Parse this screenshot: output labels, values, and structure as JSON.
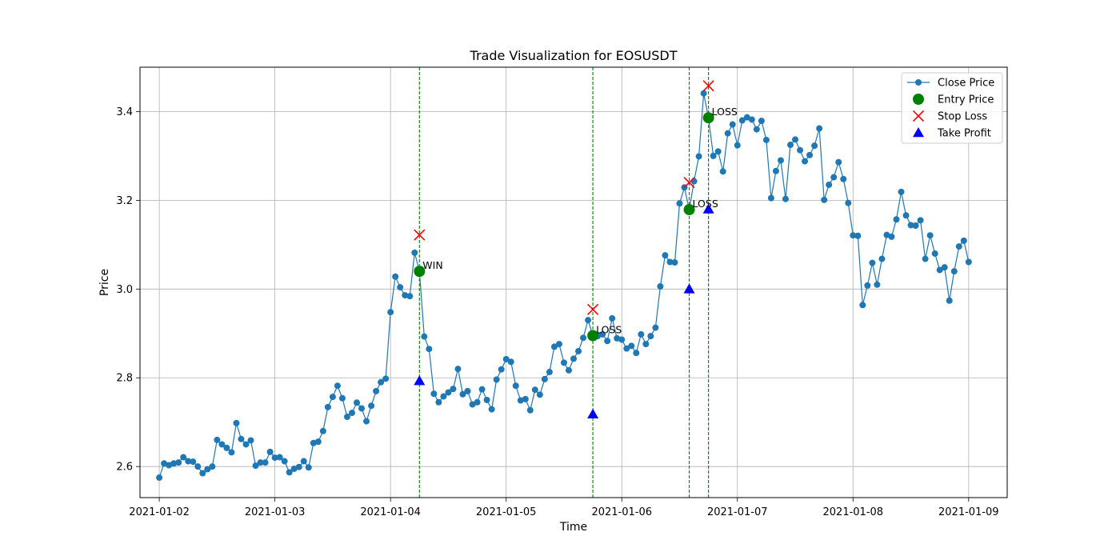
{
  "chart_data": {
    "type": "line",
    "title": "Trade Visualization for EOSUSDT",
    "xlabel": "Time",
    "ylabel": "Price",
    "ylim": [
      2.53,
      3.5
    ],
    "xlim": [
      "2021-01-01 20:00",
      "2021-01-09 08:00"
    ],
    "grid": true,
    "legend_position": "top-right",
    "x_ticks": [
      "2021-01-02",
      "2021-01-03",
      "2021-01-04",
      "2021-01-05",
      "2021-01-06",
      "2021-01-07",
      "2021-01-08",
      "2021-01-09"
    ],
    "y_ticks": [
      2.6,
      2.8,
      3.0,
      3.2,
      3.4
    ],
    "colors": {
      "close": "#1f77b4",
      "entry": "#008000",
      "stop_loss": "#ff0000",
      "take_profit": "#0000ff",
      "vline": "#008000"
    },
    "legend": [
      {
        "label": "Close Price",
        "marker": "line-circle",
        "color": "#1f77b4"
      },
      {
        "label": "Entry Price",
        "marker": "circle",
        "color": "#008000"
      },
      {
        "label": "Stop Loss",
        "marker": "x",
        "color": "#ff0000"
      },
      {
        "label": "Take Profit",
        "marker": "triangle",
        "color": "#0000ff"
      }
    ],
    "series": [
      {
        "name": "Close Price",
        "x": [
          "2021-01-02 00:00",
          "2021-01-02 01:00",
          "2021-01-02 02:00",
          "2021-01-02 03:00",
          "2021-01-02 04:00",
          "2021-01-02 05:00",
          "2021-01-02 06:00",
          "2021-01-02 07:00",
          "2021-01-02 08:00",
          "2021-01-02 09:00",
          "2021-01-02 10:00",
          "2021-01-02 11:00",
          "2021-01-02 12:00",
          "2021-01-02 13:00",
          "2021-01-02 14:00",
          "2021-01-02 15:00",
          "2021-01-02 16:00",
          "2021-01-02 17:00",
          "2021-01-02 18:00",
          "2021-01-02 19:00",
          "2021-01-02 20:00",
          "2021-01-02 21:00",
          "2021-01-02 22:00",
          "2021-01-02 23:00",
          "2021-01-03 00:00",
          "2021-01-03 01:00",
          "2021-01-03 02:00",
          "2021-01-03 03:00",
          "2021-01-03 04:00",
          "2021-01-03 05:00",
          "2021-01-03 06:00",
          "2021-01-03 07:00",
          "2021-01-03 08:00",
          "2021-01-03 09:00",
          "2021-01-03 10:00",
          "2021-01-03 11:00",
          "2021-01-03 12:00",
          "2021-01-03 13:00",
          "2021-01-03 14:00",
          "2021-01-03 15:00",
          "2021-01-03 16:00",
          "2021-01-03 17:00",
          "2021-01-03 18:00",
          "2021-01-03 19:00",
          "2021-01-03 20:00",
          "2021-01-03 21:00",
          "2021-01-03 22:00",
          "2021-01-03 23:00",
          "2021-01-04 00:00",
          "2021-01-04 01:00",
          "2021-01-04 02:00",
          "2021-01-04 03:00",
          "2021-01-04 04:00",
          "2021-01-04 05:00",
          "2021-01-04 06:00",
          "2021-01-04 07:00",
          "2021-01-04 08:00",
          "2021-01-04 09:00",
          "2021-01-04 10:00",
          "2021-01-04 11:00",
          "2021-01-04 12:00",
          "2021-01-04 13:00",
          "2021-01-04 14:00",
          "2021-01-04 15:00",
          "2021-01-04 16:00",
          "2021-01-04 17:00",
          "2021-01-04 18:00",
          "2021-01-04 19:00",
          "2021-01-04 20:00",
          "2021-01-04 21:00",
          "2021-01-04 22:00",
          "2021-01-04 23:00",
          "2021-01-05 00:00",
          "2021-01-05 01:00",
          "2021-01-05 02:00",
          "2021-01-05 03:00",
          "2021-01-05 04:00",
          "2021-01-05 05:00",
          "2021-01-05 06:00",
          "2021-01-05 07:00",
          "2021-01-05 08:00",
          "2021-01-05 09:00",
          "2021-01-05 10:00",
          "2021-01-05 11:00",
          "2021-01-05 12:00",
          "2021-01-05 13:00",
          "2021-01-05 14:00",
          "2021-01-05 15:00",
          "2021-01-05 16:00",
          "2021-01-05 17:00",
          "2021-01-05 18:00",
          "2021-01-05 19:00",
          "2021-01-05 20:00",
          "2021-01-05 21:00",
          "2021-01-05 22:00",
          "2021-01-05 23:00",
          "2021-01-06 00:00",
          "2021-01-06 01:00",
          "2021-01-06 02:00",
          "2021-01-06 03:00",
          "2021-01-06 04:00",
          "2021-01-06 05:00",
          "2021-01-06 06:00",
          "2021-01-06 07:00",
          "2021-01-06 08:00",
          "2021-01-06 09:00",
          "2021-01-06 10:00",
          "2021-01-06 11:00",
          "2021-01-06 12:00",
          "2021-01-06 13:00",
          "2021-01-06 14:00",
          "2021-01-06 15:00",
          "2021-01-06 16:00",
          "2021-01-06 17:00",
          "2021-01-06 18:00",
          "2021-01-06 19:00",
          "2021-01-06 20:00",
          "2021-01-06 21:00",
          "2021-01-06 22:00",
          "2021-01-06 23:00",
          "2021-01-07 00:00",
          "2021-01-07 01:00",
          "2021-01-07 02:00",
          "2021-01-07 03:00",
          "2021-01-07 04:00",
          "2021-01-07 05:00",
          "2021-01-07 06:00",
          "2021-01-07 07:00",
          "2021-01-07 08:00",
          "2021-01-07 09:00",
          "2021-01-07 10:00",
          "2021-01-07 11:00",
          "2021-01-07 12:00",
          "2021-01-07 13:00",
          "2021-01-07 14:00",
          "2021-01-07 15:00",
          "2021-01-07 16:00",
          "2021-01-07 17:00",
          "2021-01-07 18:00",
          "2021-01-07 19:00",
          "2021-01-07 20:00",
          "2021-01-07 21:00",
          "2021-01-07 22:00",
          "2021-01-07 23:00",
          "2021-01-08 00:00",
          "2021-01-08 01:00",
          "2021-01-08 02:00",
          "2021-01-08 03:00",
          "2021-01-08 04:00",
          "2021-01-08 05:00",
          "2021-01-08 06:00",
          "2021-01-08 07:00",
          "2021-01-08 08:00",
          "2021-01-08 09:00",
          "2021-01-08 10:00",
          "2021-01-08 11:00",
          "2021-01-08 12:00",
          "2021-01-08 13:00",
          "2021-01-08 14:00",
          "2021-01-08 15:00",
          "2021-01-08 16:00",
          "2021-01-08 17:00",
          "2021-01-08 18:00",
          "2021-01-08 19:00",
          "2021-01-08 20:00",
          "2021-01-08 21:00",
          "2021-01-08 22:00",
          "2021-01-08 23:00",
          "2021-01-09 00:00"
        ],
        "values": [
          2.575,
          2.607,
          2.603,
          2.607,
          2.609,
          2.621,
          2.612,
          2.611,
          2.6,
          2.585,
          2.594,
          2.6,
          2.66,
          2.65,
          2.642,
          2.632,
          2.698,
          2.662,
          2.65,
          2.659,
          2.602,
          2.609,
          2.609,
          2.633,
          2.62,
          2.621,
          2.612,
          2.587,
          2.595,
          2.599,
          2.612,
          2.598,
          2.653,
          2.656,
          2.68,
          2.734,
          2.757,
          2.782,
          2.754,
          2.712,
          2.721,
          2.744,
          2.731,
          2.702,
          2.737,
          2.77,
          2.79,
          2.798,
          2.948,
          3.028,
          3.004,
          2.986,
          2.984,
          3.082,
          3.04,
          2.893,
          2.865,
          2.764,
          2.745,
          2.758,
          2.767,
          2.775,
          2.82,
          2.763,
          2.77,
          2.74,
          2.745,
          2.774,
          2.75,
          2.729,
          2.796,
          2.819,
          2.842,
          2.836,
          2.782,
          2.749,
          2.752,
          2.727,
          2.773,
          2.762,
          2.797,
          2.813,
          2.87,
          2.876,
          2.834,
          2.817,
          2.843,
          2.86,
          2.89,
          2.93,
          2.895,
          2.894,
          2.898,
          2.883,
          2.934,
          2.889,
          2.886,
          2.866,
          2.872,
          2.856,
          2.898,
          2.876,
          2.894,
          2.913,
          3.006,
          3.076,
          3.061,
          3.06,
          3.193,
          3.229,
          3.179,
          3.243,
          3.299,
          3.441,
          3.386,
          3.3,
          3.31,
          3.265,
          3.351,
          3.371,
          3.324,
          3.38,
          3.387,
          3.382,
          3.36,
          3.379,
          3.336,
          3.205,
          3.266,
          3.29,
          3.203,
          3.325,
          3.337,
          3.313,
          3.288,
          3.302,
          3.323,
          3.362,
          3.201,
          3.235,
          3.252,
          3.286,
          3.248,
          3.194,
          3.121,
          3.12,
          2.964,
          3.008,
          3.059,
          3.01,
          3.068,
          3.122,
          3.118,
          3.157,
          3.219,
          3.166,
          3.144,
          3.143,
          3.155,
          3.068,
          3.121,
          3.08,
          3.043,
          3.049,
          2.974,
          3.04,
          3.096,
          3.109,
          3.061
        ]
      }
    ],
    "trades": [
      {
        "time": "2021-01-04 06:00",
        "entry": 3.04,
        "stop_loss": 3.122,
        "take_profit": 2.793,
        "result": "WIN"
      },
      {
        "time": "2021-01-05 18:00",
        "entry": 2.895,
        "stop_loss": 2.954,
        "take_profit": 2.718,
        "result": "LOSS"
      },
      {
        "time": "2021-01-06 14:00",
        "entry": 3.179,
        "stop_loss": 3.24,
        "take_profit": 3.0,
        "result": "LOSS"
      },
      {
        "time": "2021-01-06 18:00",
        "entry": 3.386,
        "stop_loss": 3.458,
        "take_profit": 3.18,
        "result": "LOSS"
      }
    ]
  }
}
